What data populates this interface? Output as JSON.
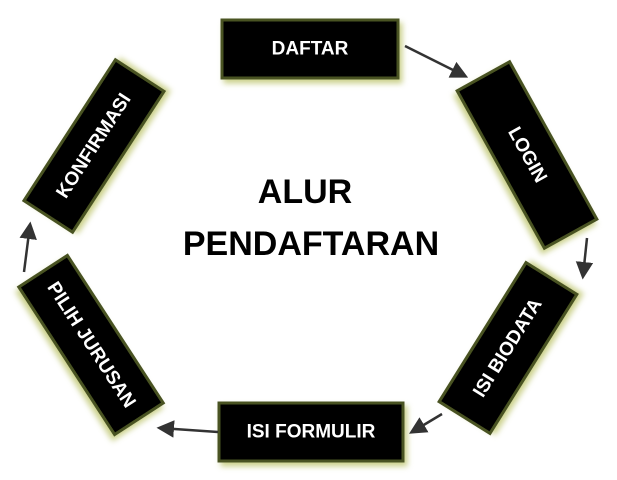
{
  "diagram": {
    "title_line1": "ALUR",
    "title_line2": "PENDAFTARAN",
    "steps": [
      {
        "id": "daftar",
        "label": "DAFTAR"
      },
      {
        "id": "login",
        "label": "LOGIN"
      },
      {
        "id": "isi-biodata",
        "label": "ISI BIODATA"
      },
      {
        "id": "isi-formulir",
        "label": "ISI FORMULIR"
      },
      {
        "id": "pilih-jurusan",
        "label": "PILIH JURUSAN"
      },
      {
        "id": "konfirmasi",
        "label": "KONFIRMASI"
      }
    ],
    "colors": {
      "box_fill": "#000000",
      "box_glow": "#d8dd9a",
      "box_border": "#4a5220",
      "text": "#ffffff",
      "arrow": "#333333"
    }
  }
}
